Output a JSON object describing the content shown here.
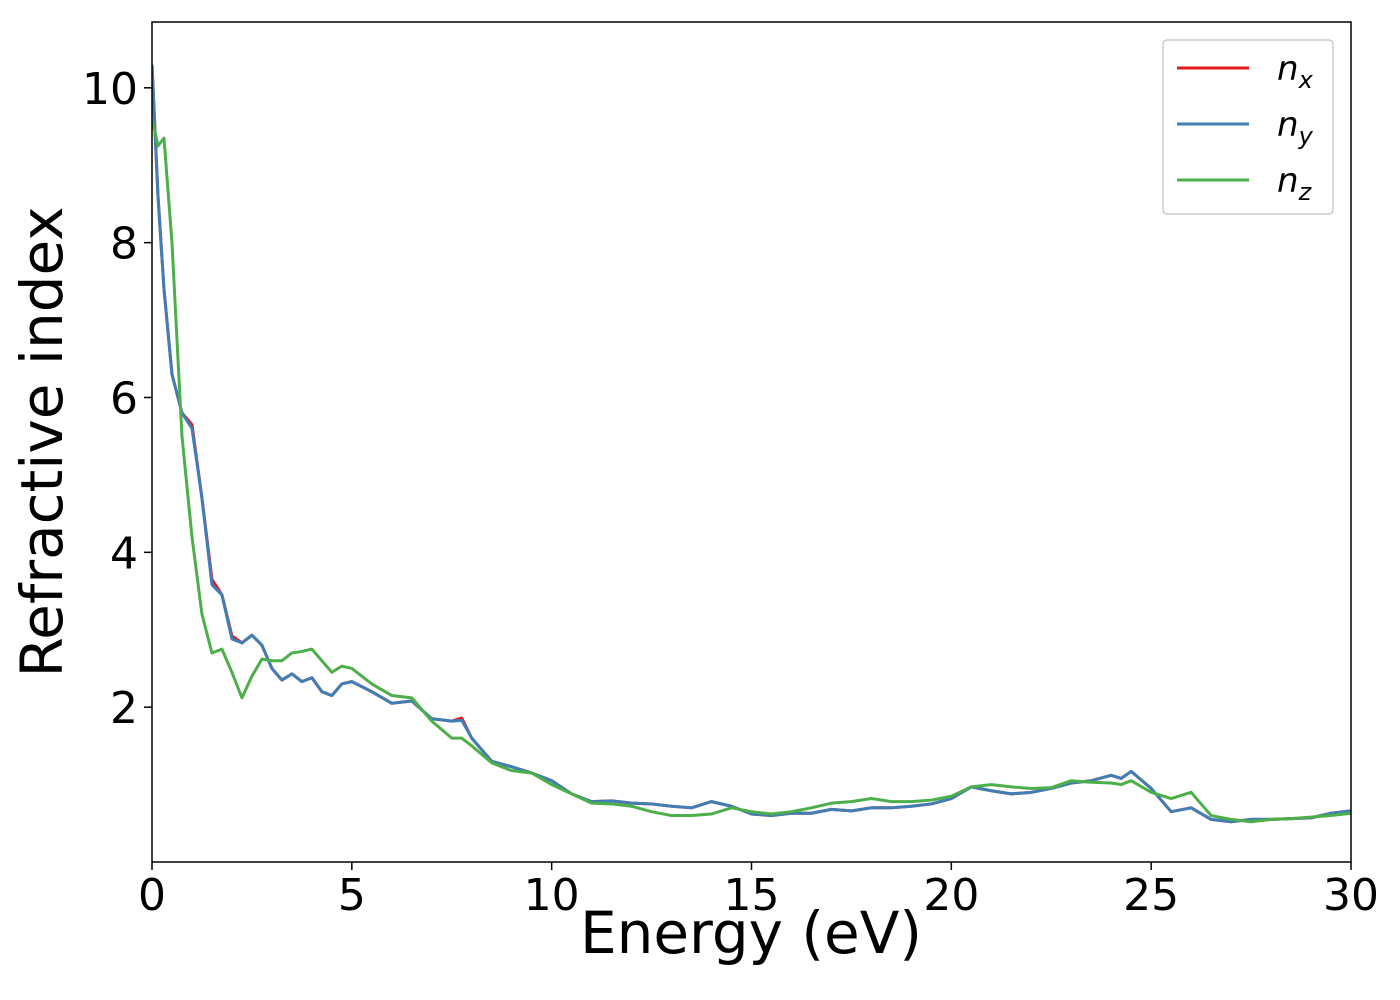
{
  "chart_data": {
    "type": "line",
    "x_label": "Energy (eV)",
    "y_label": "Refractive index",
    "x": [
      0,
      0.15,
      0.3,
      0.5,
      0.75,
      1,
      1.25,
      1.5,
      1.75,
      2,
      2.25,
      2.5,
      2.75,
      3,
      3.25,
      3.5,
      3.75,
      4,
      4.25,
      4.5,
      4.75,
      5,
      5.5,
      6,
      6.5,
      7,
      7.5,
      7.75,
      8,
      8.5,
      9,
      9.5,
      10,
      10.5,
      11,
      11.5,
      12,
      12.5,
      13,
      13.5,
      14,
      14.5,
      15,
      15.5,
      16,
      16.5,
      17,
      17.5,
      18,
      18.5,
      19,
      19.5,
      20,
      20.5,
      21,
      21.5,
      22,
      22.5,
      23,
      23.5,
      24,
      24.25,
      24.5,
      25,
      25.5,
      26,
      26.5,
      27,
      27.5,
      28,
      28.5,
      29,
      29.5,
      30
    ],
    "series": [
      {
        "name": "nx",
        "color": "#e41a1c",
        "values": [
          10.3,
          8.6,
          7.4,
          6.3,
          5.8,
          5.65,
          4.7,
          3.65,
          3.45,
          2.92,
          2.83,
          2.93,
          2.8,
          2.5,
          2.35,
          2.43,
          2.33,
          2.38,
          2.2,
          2.15,
          2.3,
          2.33,
          2.2,
          2.05,
          2.08,
          1.85,
          1.82,
          1.86,
          1.6,
          1.3,
          1.23,
          1.15,
          1.05,
          0.88,
          0.78,
          0.79,
          0.76,
          0.75,
          0.72,
          0.7,
          0.78,
          0.72,
          0.62,
          0.6,
          0.63,
          0.63,
          0.68,
          0.66,
          0.7,
          0.7,
          0.72,
          0.75,
          0.82,
          0.97,
          0.92,
          0.88,
          0.9,
          0.95,
          1.02,
          1.05,
          1.12,
          1.08,
          1.17,
          0.95,
          0.65,
          0.7,
          0.55,
          0.52,
          0.55,
          0.55,
          0.56,
          0.57,
          0.63,
          0.66
        ]
      },
      {
        "name": "ny",
        "color": "#3f7fb5",
        "values": [
          10.3,
          8.6,
          7.4,
          6.3,
          5.8,
          5.6,
          4.7,
          3.58,
          3.45,
          2.88,
          2.83,
          2.93,
          2.8,
          2.5,
          2.35,
          2.43,
          2.33,
          2.38,
          2.2,
          2.15,
          2.3,
          2.33,
          2.2,
          2.05,
          2.08,
          1.85,
          1.82,
          1.83,
          1.6,
          1.3,
          1.23,
          1.15,
          1.05,
          0.88,
          0.78,
          0.79,
          0.76,
          0.75,
          0.72,
          0.7,
          0.78,
          0.72,
          0.62,
          0.6,
          0.63,
          0.63,
          0.68,
          0.66,
          0.7,
          0.7,
          0.72,
          0.75,
          0.82,
          0.97,
          0.92,
          0.88,
          0.9,
          0.95,
          1.02,
          1.05,
          1.12,
          1.08,
          1.17,
          0.95,
          0.65,
          0.7,
          0.55,
          0.52,
          0.55,
          0.55,
          0.56,
          0.57,
          0.63,
          0.66
        ]
      },
      {
        "name": "nz",
        "color": "#4daf4a",
        "values": [
          9.6,
          9.25,
          9.35,
          8.0,
          5.5,
          4.2,
          3.2,
          2.7,
          2.75,
          2.45,
          2.12,
          2.4,
          2.62,
          2.6,
          2.6,
          2.7,
          2.72,
          2.75,
          2.6,
          2.45,
          2.53,
          2.5,
          2.3,
          2.15,
          2.12,
          1.82,
          1.6,
          1.6,
          1.5,
          1.28,
          1.18,
          1.15,
          1.0,
          0.88,
          0.76,
          0.75,
          0.72,
          0.65,
          0.6,
          0.6,
          0.62,
          0.7,
          0.65,
          0.62,
          0.65,
          0.7,
          0.76,
          0.78,
          0.82,
          0.78,
          0.78,
          0.8,
          0.85,
          0.97,
          1.0,
          0.97,
          0.95,
          0.96,
          1.05,
          1.03,
          1.02,
          1.0,
          1.05,
          0.9,
          0.82,
          0.9,
          0.6,
          0.55,
          0.52,
          0.55,
          0.56,
          0.58,
          0.6,
          0.63
        ]
      }
    ],
    "xlim": [
      0,
      30
    ],
    "xticks": [
      0,
      5,
      10,
      15,
      20,
      25,
      30
    ],
    "ylim": [
      0,
      10.85
    ],
    "yticks": [
      2,
      4,
      6,
      8,
      10
    ],
    "legend": "upper right"
  }
}
